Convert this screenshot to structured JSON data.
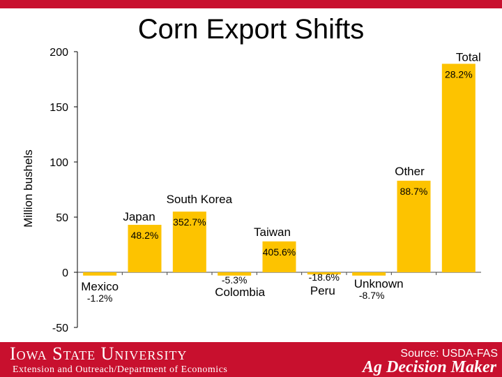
{
  "chart_data": {
    "type": "bar",
    "title": "Corn Export Shifts",
    "ylabel": "Million bushels",
    "ylim": [
      -50,
      200
    ],
    "yticks": [
      "200",
      "150",
      "100",
      "50",
      "0",
      "-50"
    ],
    "grid": false,
    "bar_color": "#fdc300",
    "categories": [
      "Mexico",
      "Japan",
      "South Korea",
      "Colombia",
      "Taiwan",
      "Peru",
      "Unknown",
      "Other",
      "Total"
    ],
    "values": [
      -3,
      43,
      55,
      -3,
      28,
      -2,
      -3,
      83,
      189
    ],
    "changes": [
      "-1.2%",
      "48.2%",
      "352.7%",
      "-5.3%",
      "405.6%",
      "-18.6%",
      "-8.7%",
      "88.7%",
      "28.2%"
    ]
  },
  "footer": {
    "university": "Iowa State University",
    "department": "Extension and Outreach/Department of Economics",
    "source": "Source: USDA-FAS",
    "brand": "Ag Decision Maker"
  },
  "colors": {
    "accent": "#c8102e",
    "bar": "#fdc300"
  }
}
